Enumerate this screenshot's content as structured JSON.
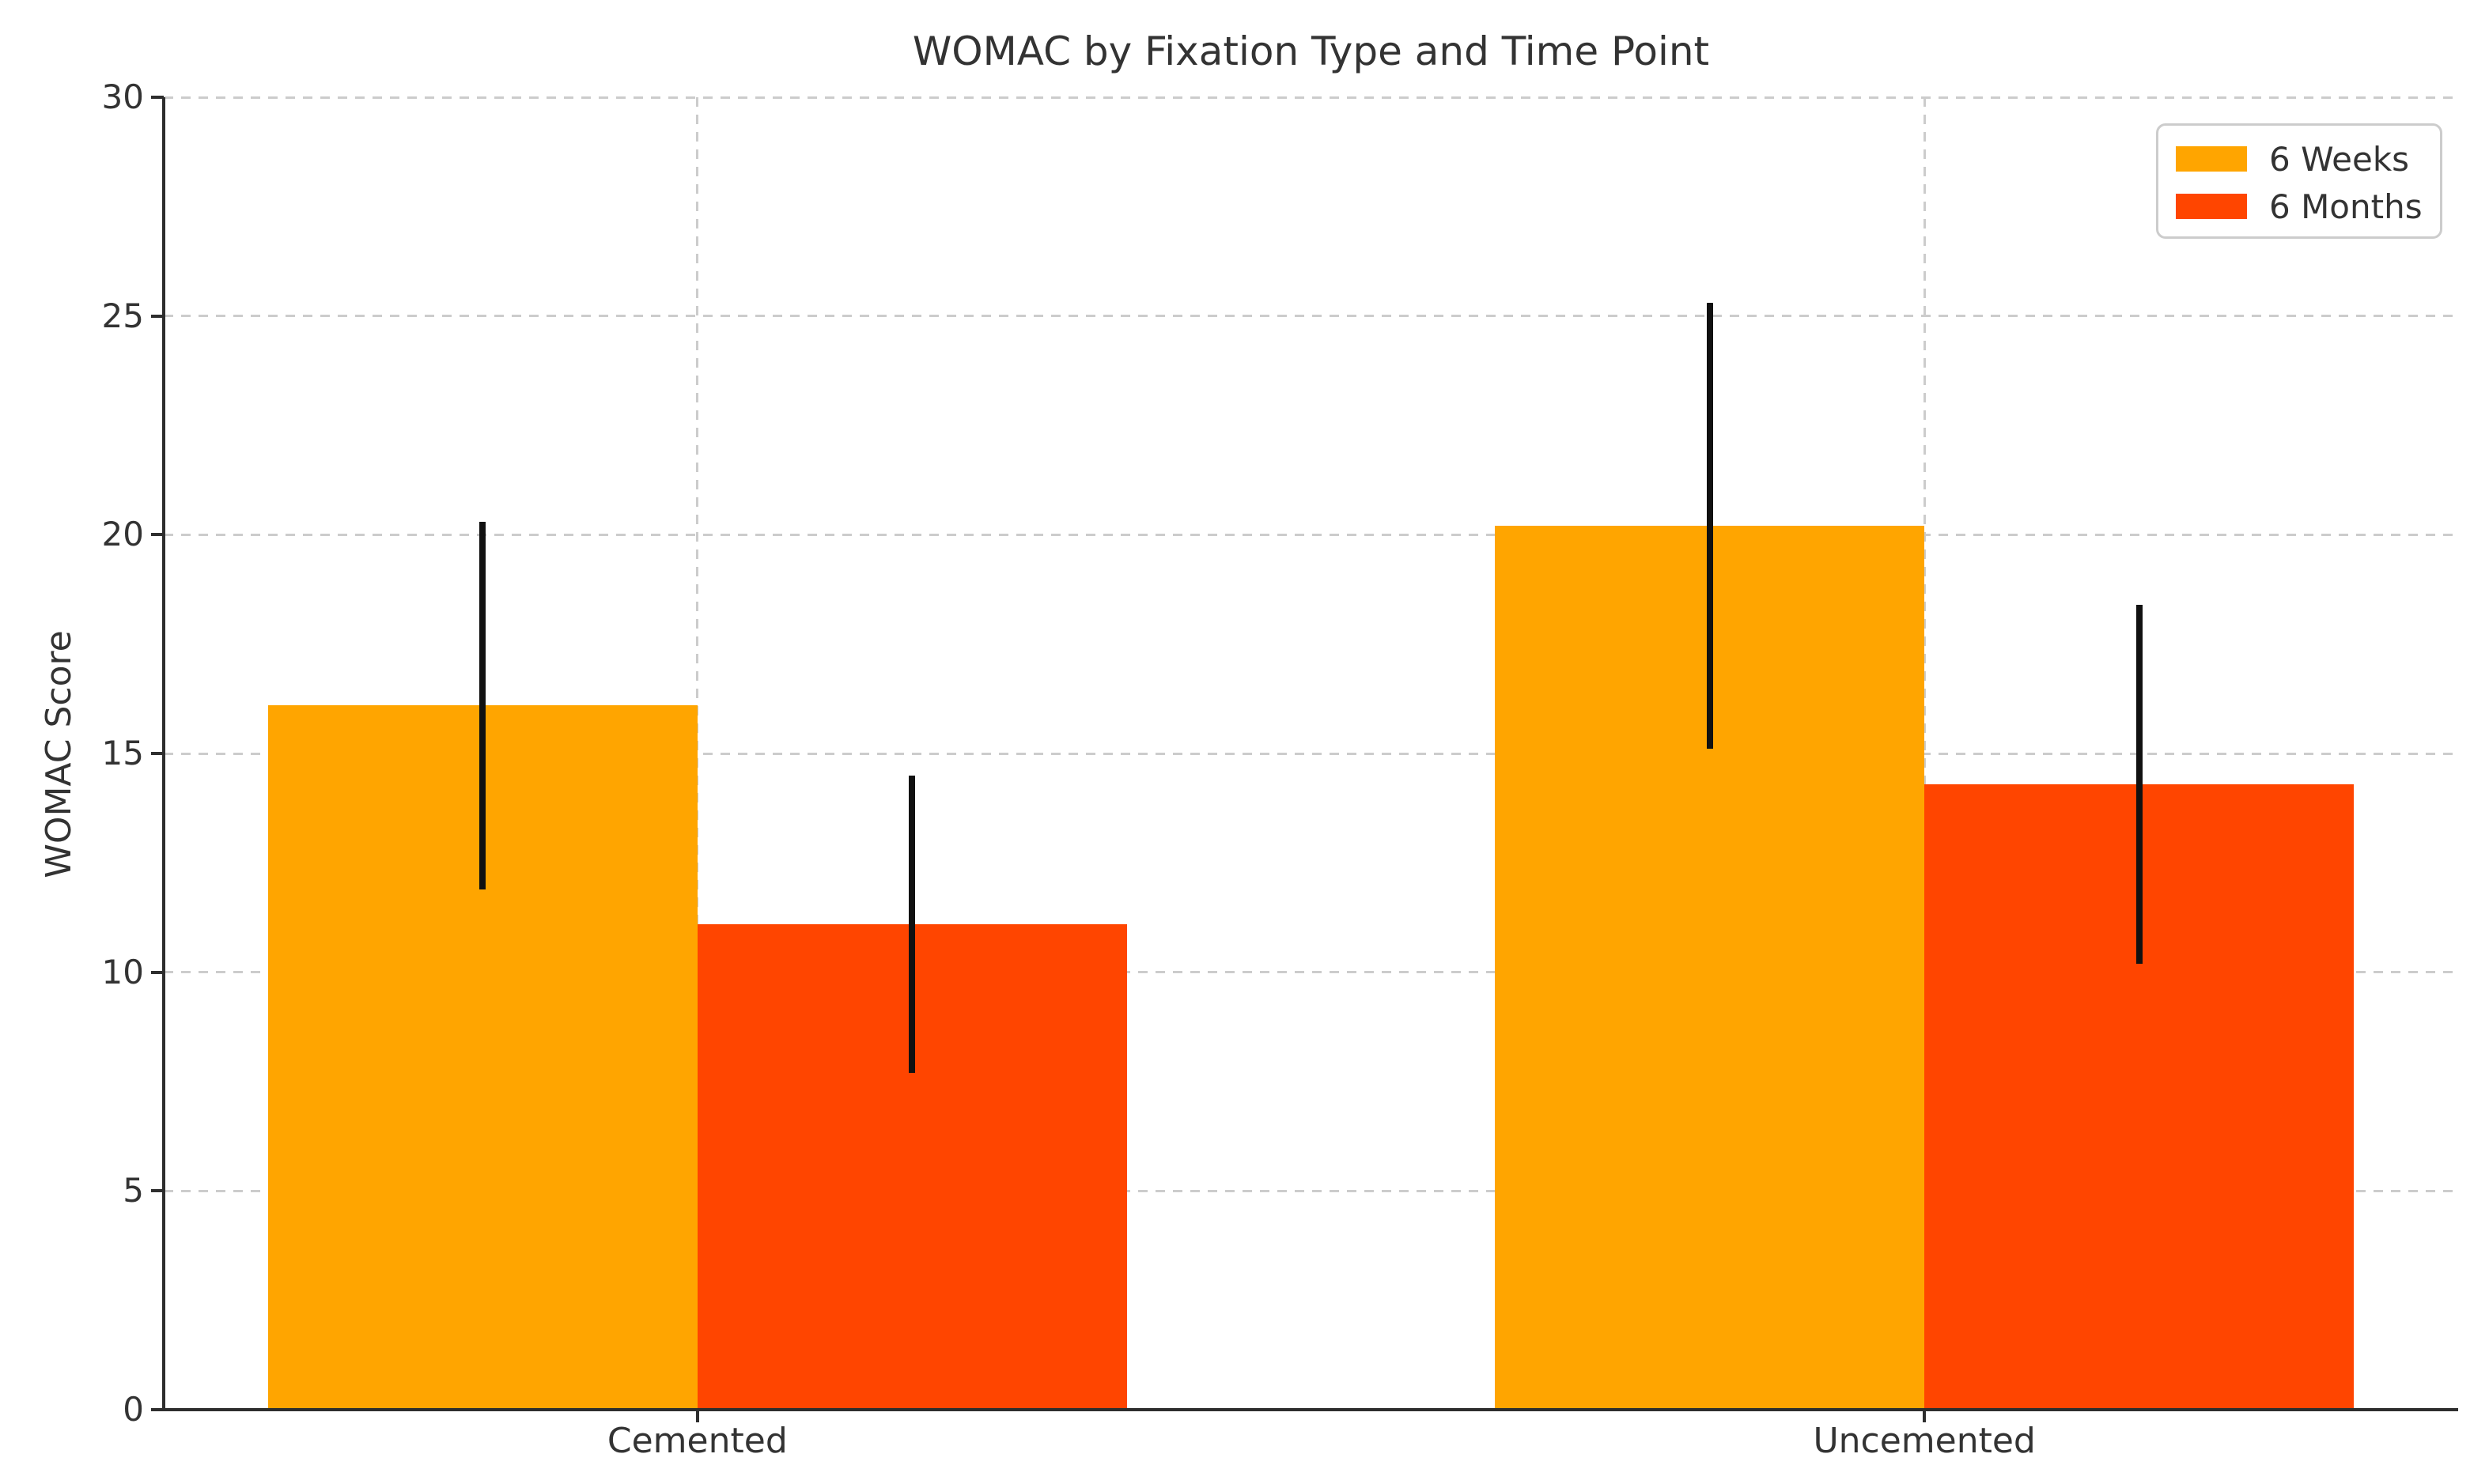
{
  "chart_data": {
    "type": "bar",
    "title": "WOMAC by Fixation Type and Time Point",
    "ylabel": "WOMAC Score",
    "categories": [
      "Cemented",
      "Uncemented"
    ],
    "series": [
      {
        "name": "6 Weeks",
        "color": "#FFA500",
        "values": [
          16.1,
          20.2
        ],
        "errors": [
          4.2,
          5.1
        ]
      },
      {
        "name": "6 Months",
        "color": "#FF4500",
        "values": [
          11.1,
          14.3
        ],
        "errors": [
          3.4,
          4.1
        ]
      }
    ],
    "ylim": [
      0,
      30
    ],
    "yticks": [
      0,
      5,
      10,
      15,
      20,
      25,
      30
    ],
    "xlim": [
      -0.435,
      1.435
    ],
    "bar_width": 0.35,
    "grid": {
      "style": "dashed",
      "color": "#cccccc",
      "horizontal": true,
      "vertical": true
    },
    "legend_position": "upper right"
  },
  "styles": {
    "text_color": "#333333",
    "spine_color": "#2e2e2e",
    "error_bar_color": "#111111",
    "background": "#ffffff"
  }
}
